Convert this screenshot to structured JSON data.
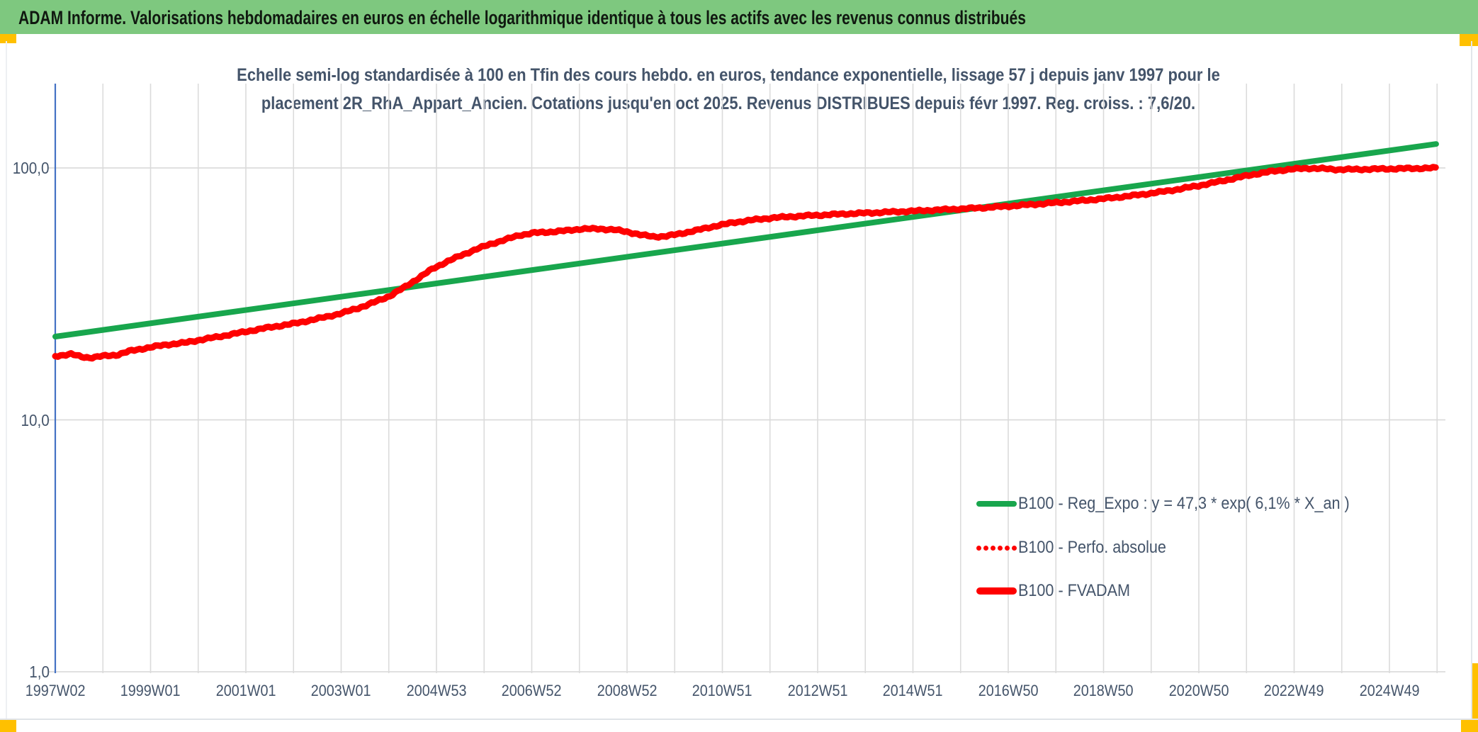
{
  "header": {
    "title": "ADAM Informe. Valorisations hebdomadaires en euros en échelle logarithmique identique à tous les actifs avec les revenus connus distribués"
  },
  "chart_title": {
    "line1": "Echelle semi-log standardisée à 100 en Tfin des cours hebdo. en euros, tendance exponentielle, lissage 57 j depuis janv 1997 pour le",
    "line2": "placement 2R_RhA_Appart_Ancien. Cotations jusqu'en oct 2025. Revenus DISTRIBUES depuis févr 1997. Reg. croiss. : 7,6/20."
  },
  "colors": {
    "header_bg": "#7EC87F",
    "accent_yellow": "#FFC000",
    "text_blue": "#44546A",
    "green_line": "#18A64D",
    "red_line": "#FE0000",
    "gridline": "#DBDBDB",
    "y_axis_line": "#4472C4"
  },
  "legend": {
    "items": [
      {
        "label": "B100 - Reg_Expo : y = 47,3 * exp( 6,1% *  X_an )",
        "swatch": "line-green"
      },
      {
        "label": "B100 - Perfo. absolue",
        "swatch": "dots-red"
      },
      {
        "label": "B100 - FVADAM",
        "swatch": "line-red"
      }
    ]
  },
  "axes": {
    "y_ticks": [
      {
        "label": "100,0",
        "value": 100
      },
      {
        "label": "10,0",
        "value": 10
      },
      {
        "label": "1,0",
        "value": 1
      }
    ],
    "x_ticks": [
      "1997W02",
      "1999W01",
      "2001W01",
      "2003W01",
      "2004W53",
      "2006W52",
      "2008W52",
      "2010W51",
      "2012W51",
      "2014W51",
      "2016W50",
      "2018W50",
      "2020W50",
      "2022W49",
      "2024W49"
    ]
  },
  "chart_data": {
    "type": "line",
    "y_scale": "log10",
    "ylim": [
      1,
      200
    ],
    "x_axis_note": "ISO weeks, yearly gridlines, labels every 104 weeks, data from 1997W02 to oct 2025",
    "series": [
      {
        "name": "B100 - Reg_Expo",
        "style": "solid",
        "color": "#18A64D",
        "width": 8,
        "points": [
          [
            1997.02,
            21.4
          ],
          [
            2025.85,
            124.5
          ]
        ]
      },
      {
        "name": "B100 - Perfo. absolue",
        "style": "dotted",
        "color": "#FE0000",
        "width": 8,
        "coincides_with": "B100 - FVADAM"
      },
      {
        "name": "B100 - FVADAM",
        "style": "solid",
        "color": "#FE0000",
        "width": 9,
        "points": [
          [
            1997.02,
            17.9
          ],
          [
            1997.2,
            18.1
          ],
          [
            1997.35,
            18.25
          ],
          [
            1997.55,
            17.8
          ],
          [
            1997.75,
            17.65
          ],
          [
            1998.0,
            17.9
          ],
          [
            1998.3,
            18.1
          ],
          [
            1998.6,
            18.8
          ],
          [
            1999.0,
            19.4
          ],
          [
            1999.35,
            19.9
          ],
          [
            1999.7,
            20.2
          ],
          [
            2000.0,
            20.7
          ],
          [
            2000.5,
            21.5
          ],
          [
            2001.0,
            22.4
          ],
          [
            2001.5,
            23.3
          ],
          [
            2002.0,
            24.1
          ],
          [
            2002.5,
            25.2
          ],
          [
            2003.0,
            26.5
          ],
          [
            2003.5,
            28.4
          ],
          [
            2004.0,
            31.0
          ],
          [
            2004.3,
            33.5
          ],
          [
            2004.6,
            36.5
          ],
          [
            2004.9,
            39.8
          ],
          [
            2005.2,
            42.5
          ],
          [
            2005.5,
            45.0
          ],
          [
            2005.8,
            47.5
          ],
          [
            2006.1,
            49.8
          ],
          [
            2006.4,
            51.8
          ],
          [
            2006.7,
            54.0
          ],
          [
            2007.0,
            55.2
          ],
          [
            2007.4,
            55.8
          ],
          [
            2007.7,
            56.4
          ],
          [
            2008.0,
            57.3
          ],
          [
            2008.4,
            57.3
          ],
          [
            2008.7,
            56.8
          ],
          [
            2009.0,
            55.6
          ],
          [
            2009.25,
            54.2
          ],
          [
            2009.5,
            53.4
          ],
          [
            2009.75,
            53.5
          ],
          [
            2010.0,
            54.5
          ],
          [
            2010.4,
            56.5
          ],
          [
            2010.8,
            58.8
          ],
          [
            2011.2,
            60.8
          ],
          [
            2011.6,
            62.2
          ],
          [
            2012.0,
            63.4
          ],
          [
            2012.5,
            64.3
          ],
          [
            2013.0,
            65.0
          ],
          [
            2013.5,
            65.7
          ],
          [
            2014.0,
            66.3
          ],
          [
            2014.5,
            66.9
          ],
          [
            2015.0,
            67.5
          ],
          [
            2015.5,
            68.2
          ],
          [
            2016.0,
            68.9
          ],
          [
            2016.5,
            69.7
          ],
          [
            2017.0,
            70.7
          ],
          [
            2017.5,
            71.8
          ],
          [
            2018.0,
            73.0
          ],
          [
            2018.5,
            74.3
          ],
          [
            2019.0,
            75.8
          ],
          [
            2019.5,
            77.6
          ],
          [
            2020.0,
            79.8
          ],
          [
            2020.5,
            82.5
          ],
          [
            2021.0,
            85.8
          ],
          [
            2021.5,
            89.8
          ],
          [
            2022.0,
            94.0
          ],
          [
            2022.4,
            96.8
          ],
          [
            2022.8,
            98.8
          ],
          [
            2023.2,
            99.8
          ],
          [
            2023.5,
            99.3
          ],
          [
            2023.8,
            98.6
          ],
          [
            2024.2,
            98.7
          ],
          [
            2024.6,
            99.0
          ],
          [
            2025.0,
            99.3
          ],
          [
            2025.4,
            99.6
          ],
          [
            2025.85,
            100.0
          ]
        ]
      }
    ]
  }
}
